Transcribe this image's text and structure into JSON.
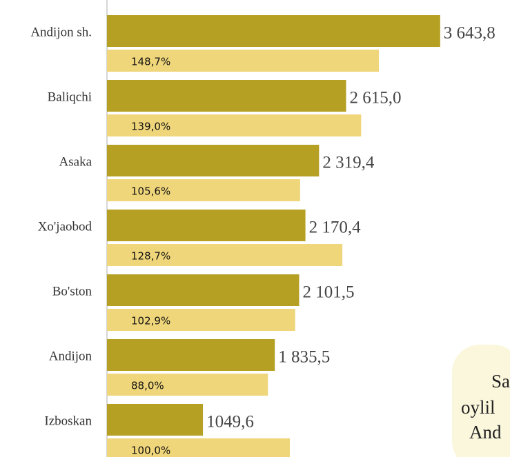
{
  "chart_data": {
    "type": "bar",
    "orientation": "horizontal",
    "categories": [
      "Andijon sh.",
      "Baliqchi",
      "Asaka",
      "Xo'jaobod",
      "Bo'ston",
      "Andijon",
      "Izboskan"
    ],
    "series": [
      {
        "name": null,
        "color": "#b5a024",
        "values": [
          3643.8,
          2615.0,
          2319.4,
          2170.4,
          2101.5,
          1835.5,
          1049.6
        ],
        "value_labels": [
          "3 643,8",
          "2 615,0",
          "2 319,4",
          "2 170,4",
          "2 101,5",
          "1 835,5",
          "1049,6"
        ]
      },
      {
        "name": null,
        "color": "#f0d67a",
        "axis": "x2",
        "values": [
          148.7,
          139.0,
          105.6,
          128.7,
          102.9,
          88.0,
          100.0
        ],
        "value_labels": [
          "148,7%",
          "139,0%",
          "105,6%",
          "128,7%",
          "102,9%",
          "88,0%",
          "100,0%"
        ]
      }
    ],
    "xlim": [
      0,
      4000
    ],
    "x2lim": [
      0,
      200
    ],
    "annotation": [
      "Sa",
      "oylil",
      "And"
    ]
  }
}
